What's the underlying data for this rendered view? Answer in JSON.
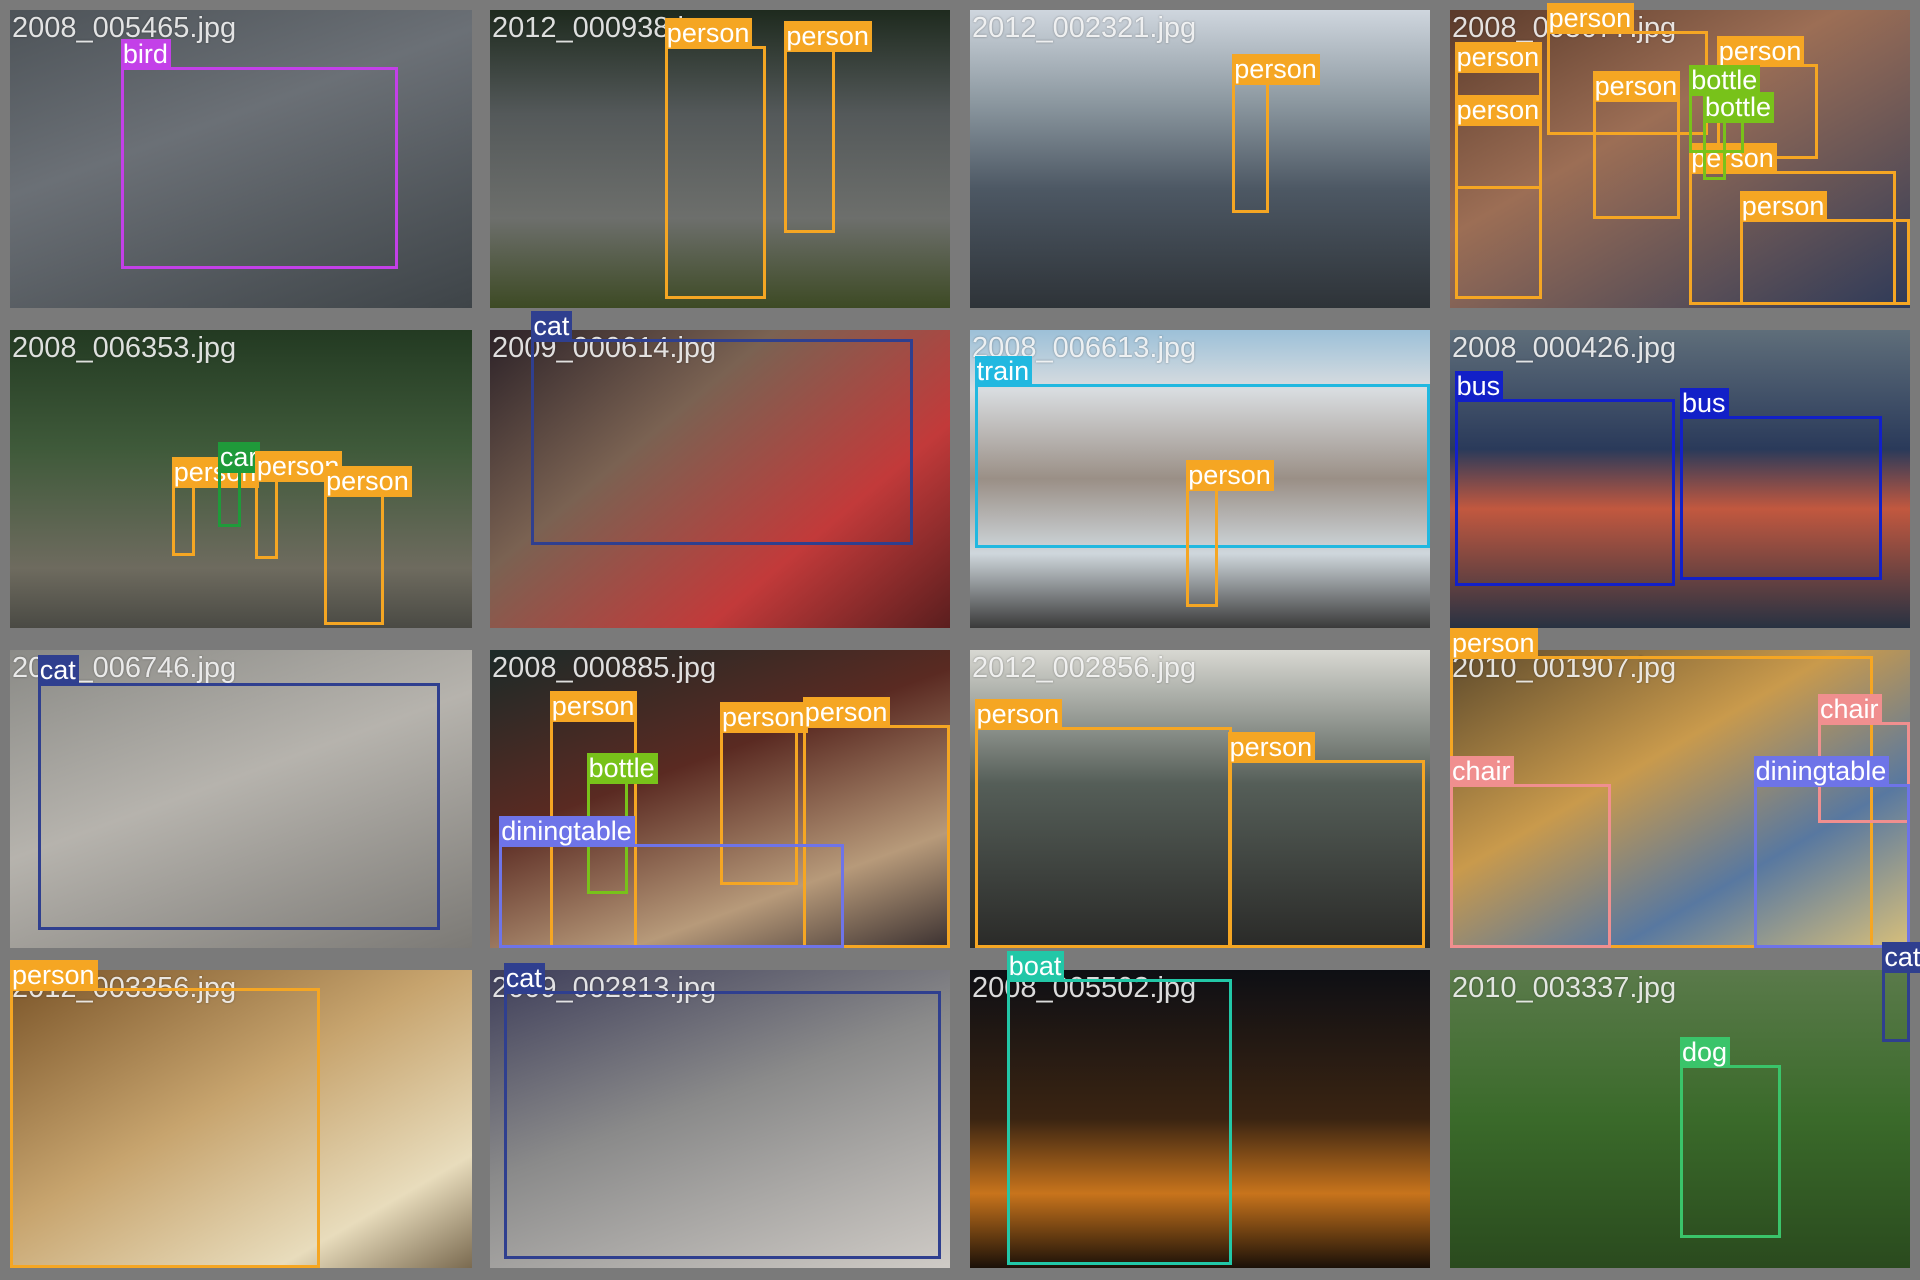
{
  "colors": {
    "person": "#f5a623",
    "bird": "#c340e8",
    "cat": "#2f3f8f",
    "car": "#1f9a3a",
    "train": "#21b8e0",
    "bus": "#1220c8",
    "bottle": "#78c21a",
    "diningtable": "#6e74e8",
    "chair": "#f08f8f",
    "boat": "#22c7a7",
    "dog": "#3ac46a"
  },
  "tiles": [
    {
      "filename": "2008_005465.jpg",
      "detections": [
        {
          "label": "bird"
        }
      ]
    },
    {
      "filename": "2012_000938.jpg",
      "detections": [
        {
          "label": "person"
        },
        {
          "label": "person"
        }
      ]
    },
    {
      "filename": "2012_002321.jpg",
      "detections": [
        {
          "label": "person"
        }
      ]
    },
    {
      "filename": "2008_005077.jpg",
      "detections": [
        {
          "label": "person"
        },
        {
          "label": "person"
        },
        {
          "label": "person"
        },
        {
          "label": "person"
        },
        {
          "label": "person"
        },
        {
          "label": "person"
        },
        {
          "label": "person"
        },
        {
          "label": "bottle"
        },
        {
          "label": "bottle"
        }
      ]
    },
    {
      "filename": "2008_006353.jpg",
      "detections": [
        {
          "label": "person"
        },
        {
          "label": "car"
        },
        {
          "label": "person"
        },
        {
          "label": "person"
        }
      ]
    },
    {
      "filename": "2009_000614.jpg",
      "detections": [
        {
          "label": "cat"
        }
      ]
    },
    {
      "filename": "2008_006613.jpg",
      "detections": [
        {
          "label": "train"
        },
        {
          "label": "person"
        }
      ]
    },
    {
      "filename": "2008_000426.jpg",
      "detections": [
        {
          "label": "bus"
        },
        {
          "label": "bus"
        }
      ]
    },
    {
      "filename": "2008_006746.jpg",
      "detections": [
        {
          "label": "cat"
        }
      ]
    },
    {
      "filename": "2008_000885.jpg",
      "detections": [
        {
          "label": "person"
        },
        {
          "label": "person"
        },
        {
          "label": "person"
        },
        {
          "label": "bottle"
        },
        {
          "label": "diningtable"
        }
      ]
    },
    {
      "filename": "2012_002856.jpg",
      "detections": [
        {
          "label": "person"
        },
        {
          "label": "person"
        }
      ]
    },
    {
      "filename": "2010_001907.jpg",
      "detections": [
        {
          "label": "person"
        },
        {
          "label": "chair"
        },
        {
          "label": "chair"
        },
        {
          "label": "diningtable"
        }
      ]
    },
    {
      "filename": "2012_003356.jpg",
      "detections": [
        {
          "label": "person"
        }
      ]
    },
    {
      "filename": "2009_002813.jpg",
      "detections": [
        {
          "label": "cat"
        }
      ]
    },
    {
      "filename": "2008_005502.jpg",
      "detections": [
        {
          "label": "boat"
        }
      ]
    },
    {
      "filename": "2010_003337.jpg",
      "detections": [
        {
          "label": "dog"
        },
        {
          "label": "cat"
        }
      ]
    }
  ]
}
